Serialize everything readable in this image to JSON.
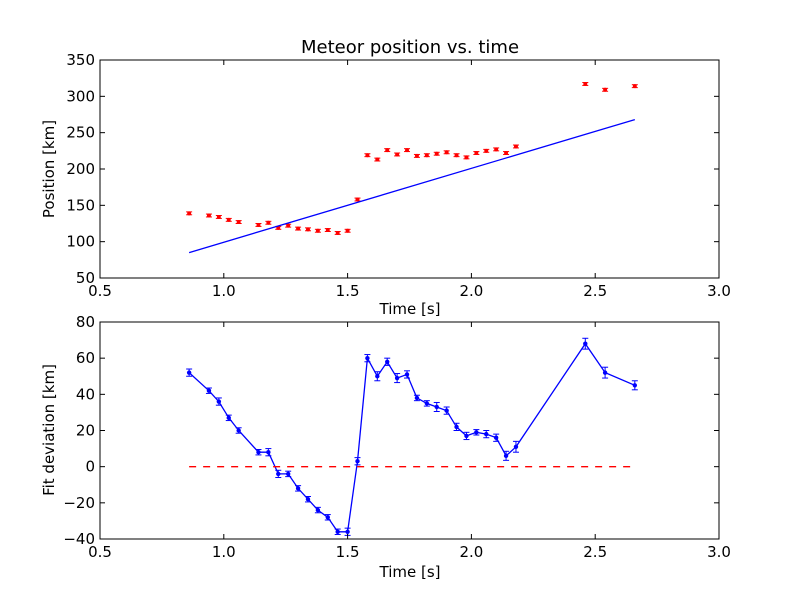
{
  "chart_data": [
    {
      "type": "scatter",
      "title": "Meteor position vs. time",
      "xlabel": "Time [s]",
      "ylabel": "Position [km]",
      "xlim": [
        0.5,
        3.0
      ],
      "ylim": [
        50,
        350
      ],
      "xticks": [
        "0.5",
        "1.0",
        "1.5",
        "2.0",
        "2.5",
        "3.0"
      ],
      "yticks": [
        "50",
        "100",
        "150",
        "200",
        "250",
        "300",
        "350"
      ],
      "colors": {
        "points": "#ff0000",
        "fit": "#0000ff"
      },
      "series": [
        {
          "kind": "points_with_errorbars",
          "x": [
            0.86,
            0.94,
            0.98,
            1.02,
            1.06,
            1.14,
            1.18,
            1.22,
            1.26,
            1.3,
            1.34,
            1.38,
            1.42,
            1.46,
            1.5,
            1.54,
            1.58,
            1.62,
            1.66,
            1.7,
            1.74,
            1.78,
            1.82,
            1.86,
            1.9,
            1.94,
            1.98,
            2.02,
            2.06,
            2.1,
            2.14,
            2.18,
            2.46,
            2.54,
            2.66
          ],
          "y": [
            139,
            136,
            134,
            130,
            127,
            123,
            126,
            119,
            122,
            118,
            117,
            115,
            116,
            112,
            115,
            158,
            219,
            213,
            226,
            220,
            226,
            218,
            219,
            221,
            223,
            219,
            216,
            222,
            225,
            227,
            222,
            231,
            317,
            309,
            314
          ],
          "err": 2
        },
        {
          "kind": "fit_line",
          "x": [
            0.86,
            2.66
          ],
          "y": [
            85,
            268
          ]
        }
      ]
    },
    {
      "type": "line",
      "title": "",
      "xlabel": "Time [s]",
      "ylabel": "Fit deviation [km]",
      "xlim": [
        0.5,
        3.0
      ],
      "ylim": [
        -40,
        80
      ],
      "xticks": [
        "0.5",
        "1.0",
        "1.5",
        "2.0",
        "2.5",
        "3.0"
      ],
      "yticks": [
        "−40",
        "−20",
        "0",
        "20",
        "40",
        "60",
        "80"
      ],
      "colors": {
        "deviation": "#0000ff",
        "zero": "#ff0000"
      },
      "series": [
        {
          "kind": "line_with_errorbars",
          "x": [
            0.86,
            0.94,
            0.98,
            1.02,
            1.06,
            1.14,
            1.18,
            1.22,
            1.26,
            1.3,
            1.34,
            1.38,
            1.42,
            1.46,
            1.5,
            1.54,
            1.58,
            1.62,
            1.66,
            1.7,
            1.74,
            1.78,
            1.82,
            1.86,
            1.9,
            1.94,
            1.98,
            2.02,
            2.06,
            2.1,
            2.14,
            2.18,
            2.46,
            2.54,
            2.66
          ],
          "y": [
            52,
            42,
            36,
            27,
            20,
            8,
            8,
            -4,
            -4,
            -12,
            -18,
            -24,
            -28,
            -36,
            -36,
            3,
            60,
            50,
            58,
            49,
            51,
            38,
            35,
            33,
            31,
            22,
            17,
            19,
            18,
            16,
            6,
            11,
            68,
            52,
            45
          ],
          "err": [
            2,
            1.5,
            2,
            1.5,
            1.5,
            1.5,
            2,
            2,
            1.5,
            1.5,
            1.5,
            1.5,
            1.5,
            1.5,
            2,
            2,
            2,
            2.5,
            2,
            2.5,
            2,
            1.5,
            1.5,
            2.5,
            2,
            2,
            2,
            1.5,
            2,
            2,
            2.5,
            3,
            3,
            3,
            2.5
          ]
        },
        {
          "kind": "zero_line_dashed",
          "x": [
            0.86,
            2.66
          ],
          "y": [
            0,
            0
          ]
        }
      ]
    }
  ]
}
